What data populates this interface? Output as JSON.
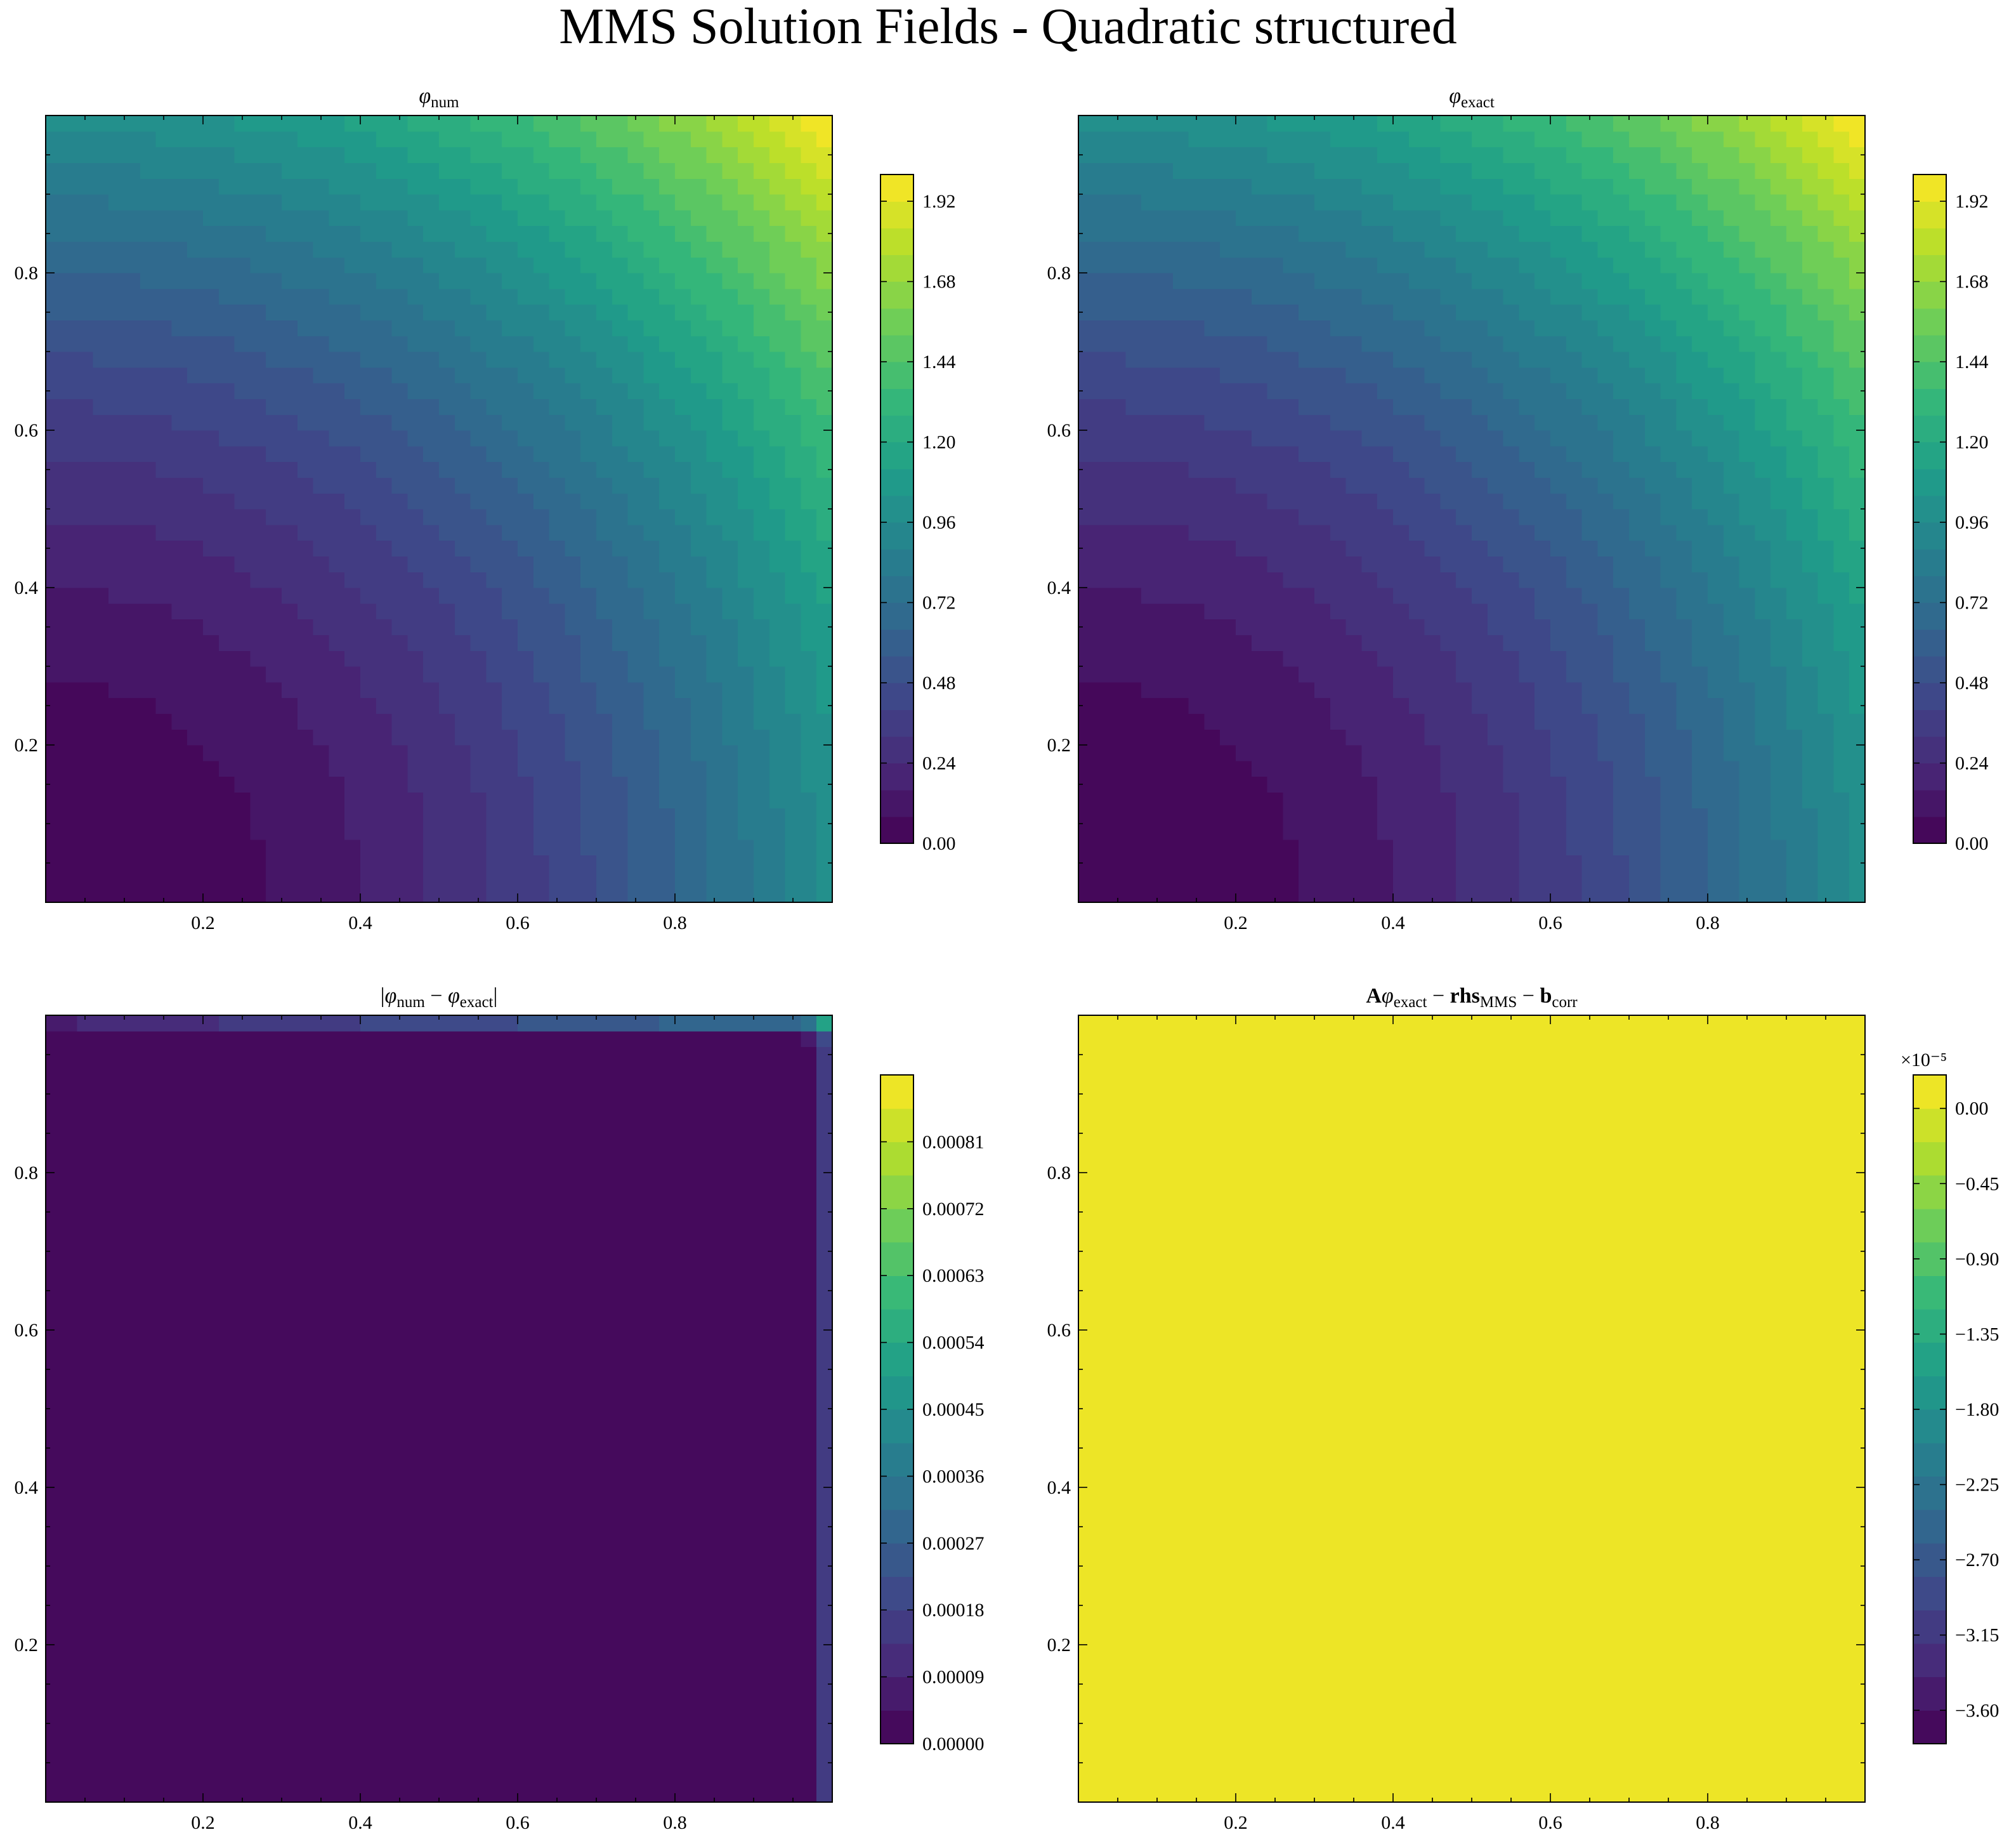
{
  "figure": {
    "title": "MMS Solution Fields - Quadratic structured"
  },
  "colormap": {
    "name": "viridis",
    "stops": [
      "#440154",
      "#482878",
      "#3e4989",
      "#31688e",
      "#26828e",
      "#1f9e89",
      "#35b779",
      "#6ece58",
      "#b5de2b",
      "#fde725"
    ]
  },
  "chart_data": [
    {
      "type": "heatmap",
      "id": "phi_num",
      "title": "φ_num",
      "field": "x^2 + y^2",
      "nx": 50,
      "ny": 50,
      "xlim": [
        0,
        1
      ],
      "ylim": [
        0,
        1
      ],
      "xticks": [
        0.2,
        0.4,
        0.6,
        0.8
      ],
      "yticks": [
        0.2,
        0.4,
        0.6,
        0.8
      ],
      "colorbar": {
        "levels": 25,
        "vmin": 0.0,
        "vmax": 2.0,
        "ticks": [
          0.0,
          0.24,
          0.48,
          0.72,
          0.96,
          1.2,
          1.44,
          1.68,
          1.92
        ],
        "tick_labels": [
          "0.00",
          "0.24",
          "0.48",
          "0.72",
          "0.96",
          "1.20",
          "1.44",
          "1.68",
          "1.92"
        ],
        "offset_label": ""
      }
    },
    {
      "type": "heatmap",
      "id": "phi_exact",
      "title": "φ_exact",
      "field": "x^2 + y^2",
      "nx": 50,
      "ny": 50,
      "xlim": [
        0,
        1
      ],
      "ylim": [
        0,
        1
      ],
      "xticks": [
        0.2,
        0.4,
        0.6,
        0.8
      ],
      "yticks": [
        0.2,
        0.4,
        0.6,
        0.8
      ],
      "colorbar": {
        "levels": 25,
        "vmin": 0.0,
        "vmax": 2.0,
        "ticks": [
          0.0,
          0.24,
          0.48,
          0.72,
          0.96,
          1.2,
          1.44,
          1.68,
          1.92
        ],
        "tick_labels": [
          "0.00",
          "0.24",
          "0.48",
          "0.72",
          "0.96",
          "1.20",
          "1.44",
          "1.68",
          "1.92"
        ],
        "offset_label": ""
      }
    },
    {
      "type": "heatmap",
      "id": "abs_error",
      "title": "|φ_num − φ_exact|",
      "field": "boundary error: near zero in interior, rising at right edge (x→1) and top edge (y→1)",
      "nx": 50,
      "ny": 50,
      "xlim": [
        0,
        1
      ],
      "ylim": [
        0,
        1
      ],
      "xticks": [
        0.2,
        0.4,
        0.6,
        0.8
      ],
      "yticks": [
        0.2,
        0.4,
        0.6,
        0.8
      ],
      "colorbar": {
        "levels": 20,
        "vmin": 0.0,
        "vmax": 0.0009,
        "ticks": [
          0.0,
          9e-05,
          0.00018,
          0.00027,
          0.00036,
          0.00045,
          0.00054,
          0.00063,
          0.00072,
          0.00081
        ],
        "tick_labels": [
          "0.00000",
          "0.00009",
          "0.00018",
          "0.00027",
          "0.00036",
          "0.00045",
          "0.00054",
          "0.00063",
          "0.00072",
          "0.00081"
        ],
        "offset_label": ""
      }
    },
    {
      "type": "heatmap",
      "id": "residual",
      "title": "Aφ_exact − rhs_MMS − b_corr",
      "field": "uniform, at the top of the colour scale (≈ 0)",
      "nx": 50,
      "ny": 50,
      "xlim": [
        0,
        1
      ],
      "ylim": [
        0,
        1
      ],
      "xticks": [
        0.2,
        0.4,
        0.6,
        0.8
      ],
      "yticks": [
        0.2,
        0.4,
        0.6,
        0.8
      ],
      "colorbar": {
        "levels": 20,
        "vmin": -3.8,
        "vmax": 0.2,
        "ticks": [
          -3.6,
          -3.15,
          -2.7,
          -2.25,
          -1.8,
          -1.35,
          -0.9,
          -0.45,
          0.0
        ],
        "tick_labels": [
          "−3.60",
          "−3.15",
          "−2.70",
          "−2.25",
          "−1.80",
          "−1.35",
          "−0.90",
          "−0.45",
          "0.00"
        ],
        "offset_label": "×10⁻⁵"
      }
    }
  ]
}
